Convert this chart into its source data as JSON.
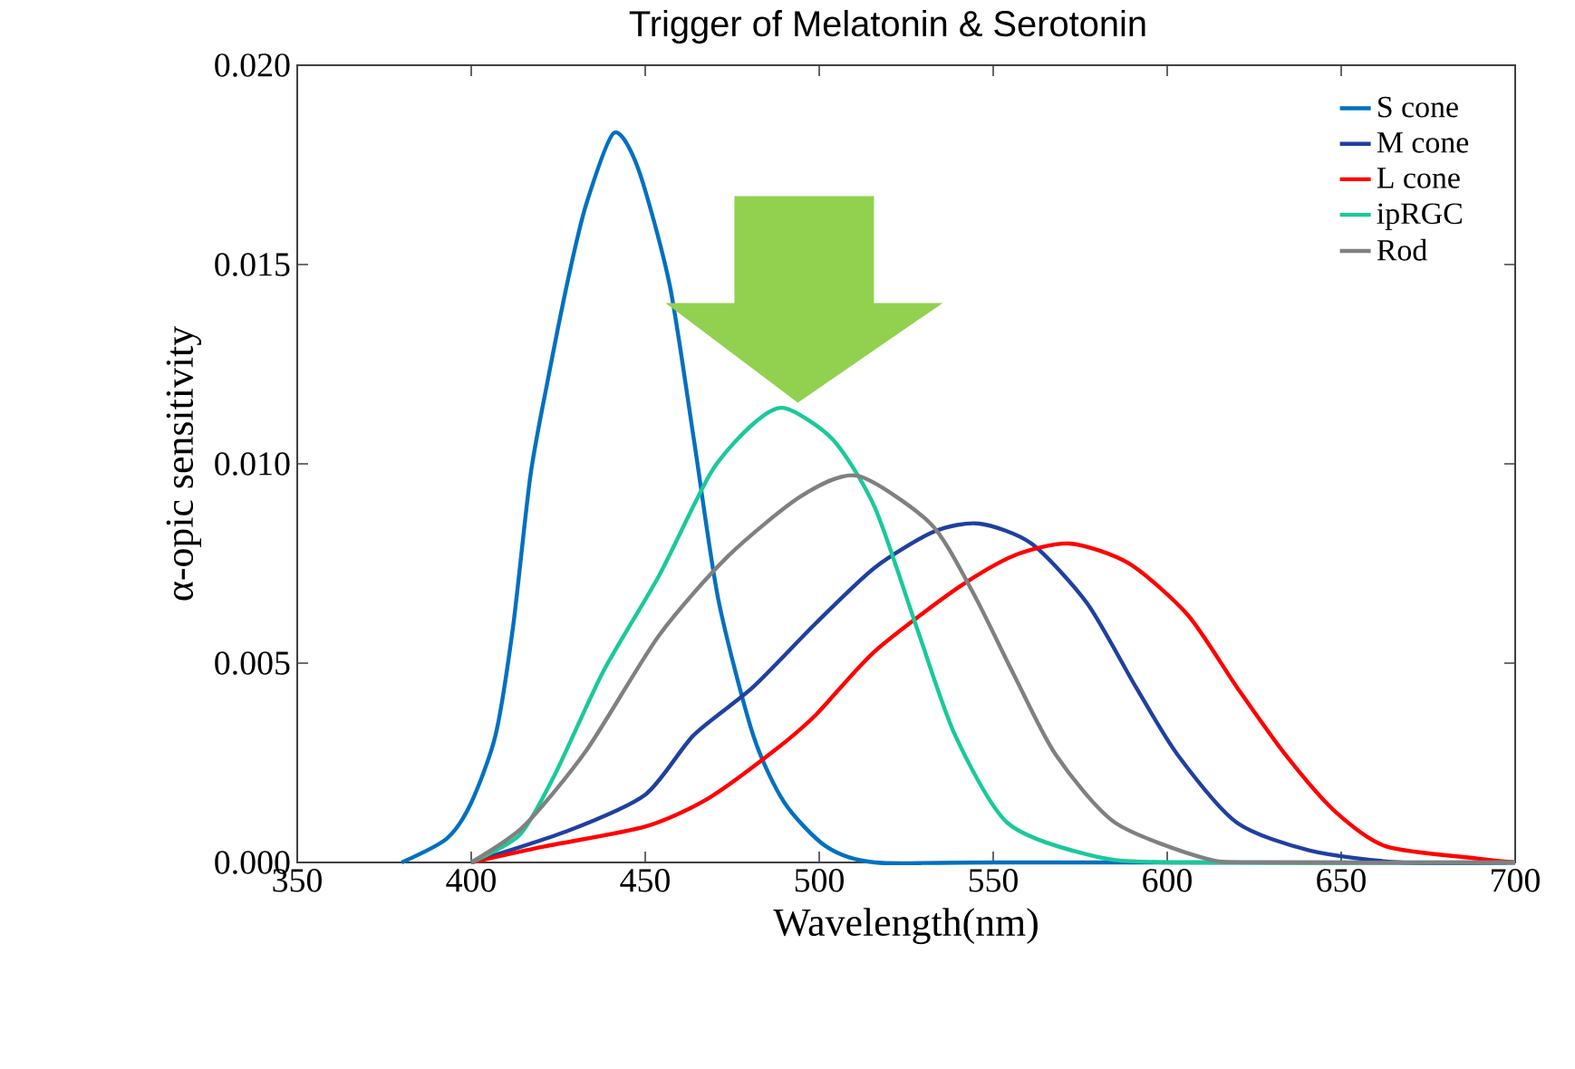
{
  "chart_data": {
    "type": "line",
    "title": "Trigger of Melatonin & Serotonin",
    "xlabel": "Wavelength(nm)",
    "ylabel": "α-opic sensitivity",
    "xlim": [
      350,
      700
    ],
    "xticks": [
      350,
      400,
      450,
      500,
      550,
      600,
      650,
      700
    ],
    "ylim": [
      0,
      0.02
    ],
    "yticks": [
      {
        "value": 0,
        "label": "0.000"
      },
      {
        "value": 0.005,
        "label": "0.005"
      },
      {
        "value": 0.01,
        "label": "0.010"
      },
      {
        "value": 0.015,
        "label": "0.015"
      },
      {
        "value": 0.02,
        "label": "0.020"
      }
    ],
    "legend": "top right",
    "grid": false,
    "marker": "none",
    "line_style": "solid",
    "series": [
      {
        "name": "S cone",
        "color": "#0070c0",
        "x": [
          380,
          393,
          400,
          407,
          412,
          417,
          422,
          428,
          433,
          441,
          448,
          457,
          464,
          471,
          481,
          490,
          502,
          516,
          550,
          700
        ],
        "values": [
          0,
          0.0006,
          0.0015,
          0.0032,
          0.0059,
          0.0097,
          0.0121,
          0.0147,
          0.0165,
          0.0183,
          0.0174,
          0.0145,
          0.0106,
          0.0066,
          0.0032,
          0.0015,
          0.0004,
          0,
          0,
          0
        ]
      },
      {
        "name": "M cone",
        "color": "#2040a0",
        "x": [
          400,
          428,
          450,
          464,
          481,
          499,
          516,
          533,
          546,
          561,
          577,
          591,
          603,
          620,
          641,
          667,
          700
        ],
        "values": [
          0,
          0.0008,
          0.0017,
          0.0032,
          0.0044,
          0.006,
          0.0074,
          0.0083,
          0.0085,
          0.008,
          0.0065,
          0.0044,
          0.0027,
          0.001,
          0.0003,
          0,
          0
        ]
      },
      {
        "name": "L cone",
        "color": "#ff0000",
        "x": [
          400,
          421,
          450,
          468,
          487,
          499,
          516,
          540,
          556,
          572,
          589,
          606,
          620,
          634,
          648,
          663,
          689,
          700
        ],
        "values": [
          0,
          0.0004,
          0.0009,
          0.0016,
          0.0028,
          0.0037,
          0.0053,
          0.0069,
          0.0077,
          0.008,
          0.0075,
          0.0062,
          0.0044,
          0.0027,
          0.0013,
          0.0004,
          0.0001,
          0
        ]
      },
      {
        "name": "ipRGC",
        "color": "#1ac99a",
        "x": [
          400,
          414,
          424,
          438,
          454,
          469,
          481,
          490,
          504,
          516,
          528,
          539,
          554,
          577,
          600,
          700
        ],
        "values": [
          0,
          0.0007,
          0.0022,
          0.0048,
          0.0072,
          0.0098,
          0.011,
          0.0114,
          0.0106,
          0.0089,
          0.0059,
          0.0032,
          0.001,
          0.0002,
          0,
          0
        ]
      },
      {
        "name": "Rod",
        "color": "#808080",
        "x": [
          400,
          415,
          433,
          454,
          474,
          495,
          511,
          532,
          544,
          556,
          568,
          585,
          611,
          628,
          700
        ],
        "values": [
          0,
          0.0009,
          0.0028,
          0.0057,
          0.0077,
          0.0092,
          0.0097,
          0.0085,
          0.0068,
          0.0047,
          0.0027,
          0.001,
          0.0001,
          0,
          0
        ]
      }
    ]
  }
}
